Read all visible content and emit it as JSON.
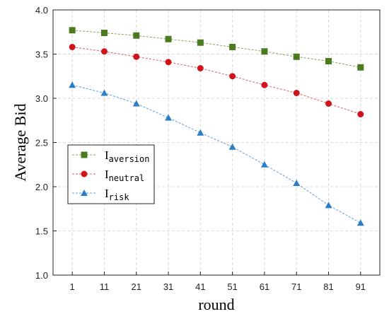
{
  "chart_data": {
    "type": "line",
    "xlabel": "round",
    "ylabel": "Average Bid",
    "x": [
      1,
      11,
      21,
      31,
      41,
      51,
      61,
      71,
      81,
      91
    ],
    "ylim": [
      1.0,
      4.0
    ],
    "yticks": [
      "1.0",
      "1.5",
      "2.0",
      "2.5",
      "3.0",
      "3.5",
      "4.0"
    ],
    "grid": true,
    "legend_position": "lower-left",
    "series": [
      {
        "name_main": "I",
        "name_sub": "aversion",
        "marker": "square",
        "color": "#4a7c1f",
        "line_color": "#8aa25a",
        "values": [
          3.77,
          3.74,
          3.71,
          3.67,
          3.63,
          3.58,
          3.53,
          3.47,
          3.42,
          3.35
        ]
      },
      {
        "name_main": "I",
        "name_sub": "neutral",
        "marker": "circle",
        "color": "#d0141c",
        "line_color": "#e06060",
        "values": [
          3.58,
          3.53,
          3.47,
          3.41,
          3.34,
          3.25,
          3.15,
          3.06,
          2.94,
          2.82
        ]
      },
      {
        "name_main": "I",
        "name_sub": "risk",
        "marker": "triangle",
        "color": "#2a7fc8",
        "line_color": "#5aa0dd",
        "values": [
          3.15,
          3.06,
          2.94,
          2.78,
          2.61,
          2.45,
          2.25,
          2.04,
          1.79,
          1.59
        ]
      }
    ]
  }
}
